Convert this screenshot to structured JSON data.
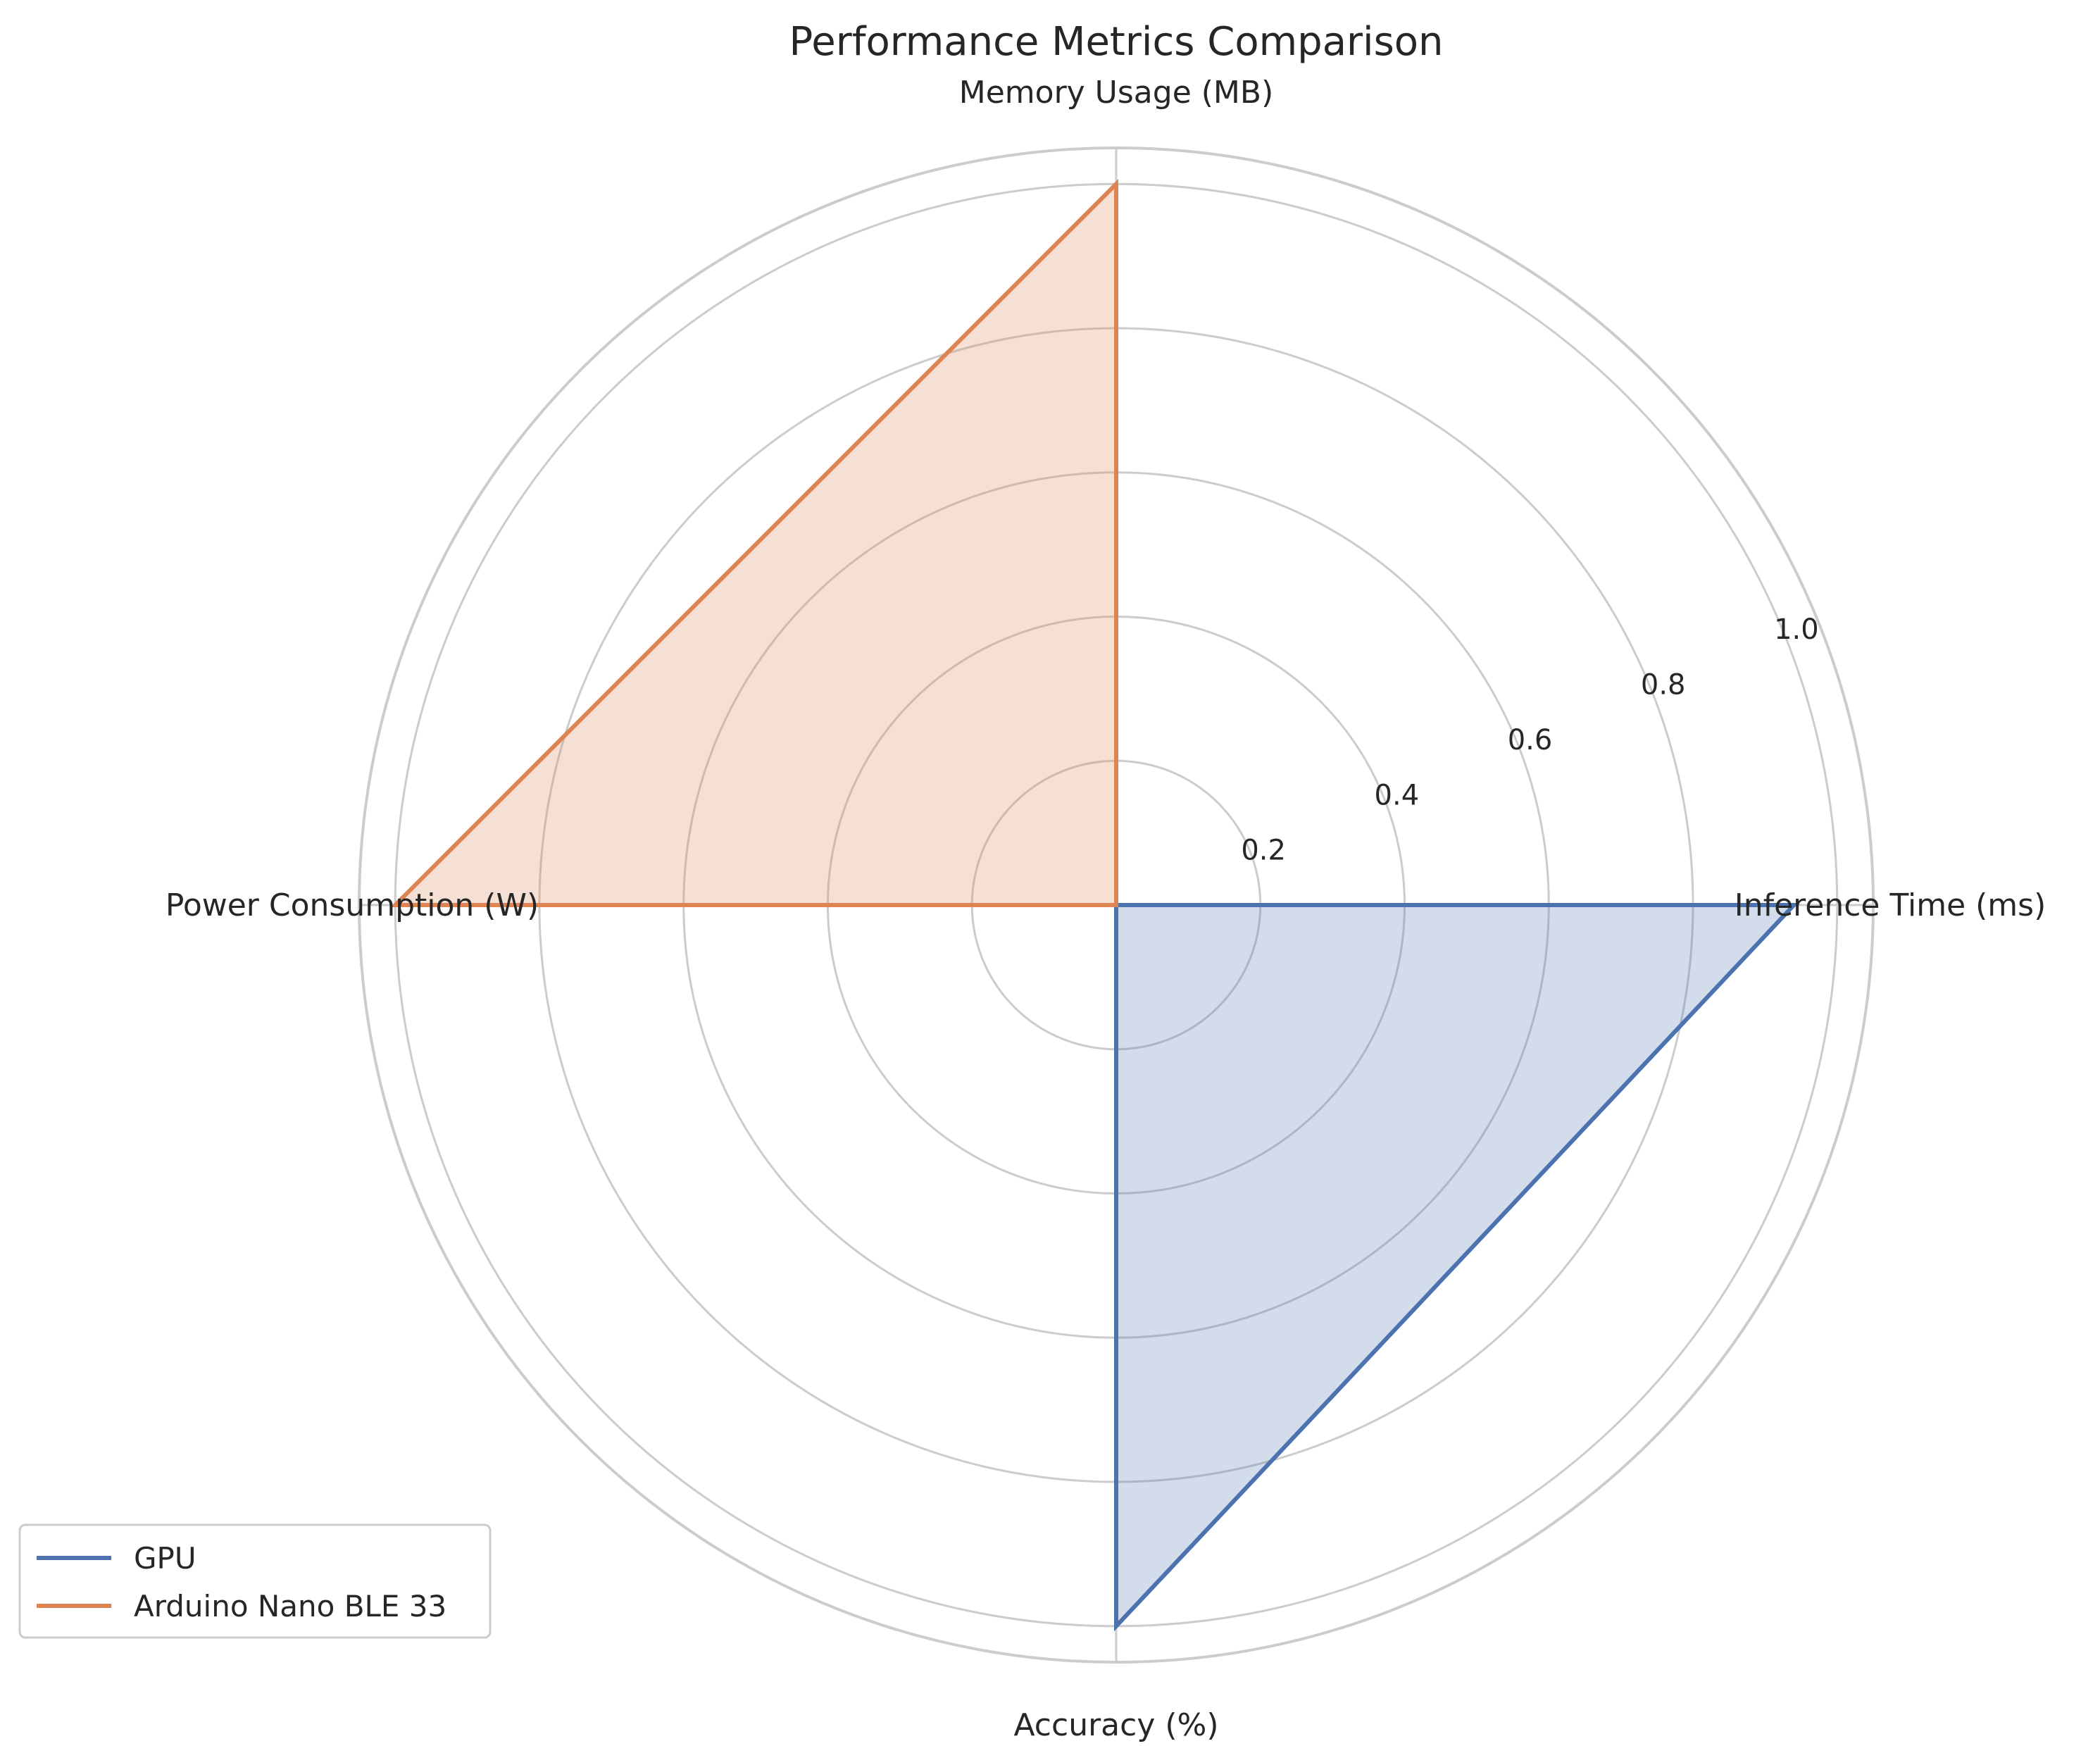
{
  "chart_data": {
    "type": "radar",
    "title": "Performance Metrics Comparison",
    "axes": [
      "Inference Time (ms)",
      "Memory Usage (MB)",
      "Power Consumption (W)",
      "Accuracy (%)"
    ],
    "radial_ticks": [
      "0.2",
      "0.4",
      "0.6",
      "0.8",
      "1.0"
    ],
    "rlim": [
      0,
      1.05
    ],
    "grid": true,
    "legend_position": "lower-left",
    "series": [
      {
        "name": "GPU",
        "values": [
          0.94,
          0.0,
          0.0,
          1.0
        ],
        "color": "#4c72b0"
      },
      {
        "name": "Arduino Nano BLE 33",
        "values": [
          0.0,
          1.0,
          1.0,
          0.0
        ],
        "color": "#dd8452"
      }
    ]
  }
}
